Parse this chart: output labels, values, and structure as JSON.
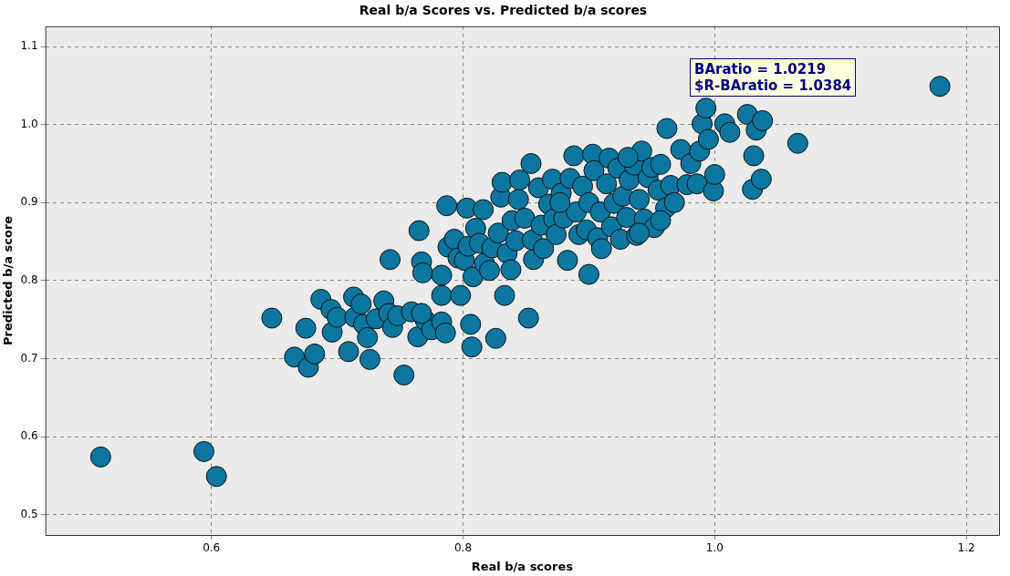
{
  "chart_data": {
    "type": "scatter",
    "title": "Real b/a Scores vs. Predicted b/a scores",
    "xlabel": "Real b/a scores",
    "ylabel": "Predicted b/a score",
    "annotations": [
      "BAratio = 1.0219",
      "$R-BAratio = 1.0384"
    ],
    "xlim": [
      0.468,
      1.226
    ],
    "ylim": [
      0.474,
      1.126
    ],
    "xticks": [
      0.6,
      0.8,
      {
        "value": 1,
        "label": "1.0"
      },
      1.2
    ],
    "yticks": [
      0.5,
      0.6,
      0.7,
      0.8,
      0.9,
      {
        "value": 1,
        "label": "1.0"
      },
      1.1
    ],
    "grid": true,
    "marker": "circle",
    "legend": false,
    "series": [
      {
        "color": "#0b77a0",
        "x": [
          0.512,
          0.594,
          0.604,
          0.648,
          0.666,
          0.677,
          0.682,
          0.675,
          0.687,
          0.695,
          0.696,
          0.7,
          0.709,
          0.713,
          0.714,
          0.719,
          0.721,
          0.724,
          0.726,
          0.731,
          0.737,
          0.741,
          0.742,
          0.744,
          0.748,
          0.753,
          0.759,
          0.765,
          0.767,
          0.768,
          0.764,
          0.77,
          0.775,
          0.783,
          0.786,
          0.767,
          0.783,
          0.783,
          0.787,
          0.788,
          0.793,
          0.796,
          0.798,
          0.801,
          0.803,
          0.804,
          0.806,
          0.807,
          0.808,
          0.81,
          0.813,
          0.816,
          0.817,
          0.821,
          0.823,
          0.826,
          0.828,
          0.83,
          0.831,
          0.833,
          0.835,
          0.838,
          0.839,
          0.842,
          0.844,
          0.845,
          0.849,
          0.852,
          0.854,
          0.855,
          0.856,
          0.86,
          0.862,
          0.864,
          0.868,
          0.871,
          0.872,
          0.874,
          0.878,
          0.88,
          0.883,
          0.885,
          0.888,
          0.89,
          0.892,
          0.895,
          0.898,
          0.9,
          0.903,
          0.904,
          0.907,
          0.909,
          0.91,
          0.914,
          0.916,
          0.918,
          0.92,
          0.923,
          0.925,
          0.927,
          0.93,
          0.932,
          0.936,
          0.938,
          0.94,
          0.942,
          0.944,
          0.947,
          0.95,
          0.952,
          0.955,
          0.957,
          0.962,
          0.961,
          0.965,
          0.968,
          0.973,
          0.978,
          0.981,
          0.986,
          0.988,
          0.99,
          0.993,
          0.995,
          0.999,
          1.0,
          1.008,
          1.012,
          1.026,
          1.033,
          1.031,
          1.03,
          1.037,
          1.038,
          1.066,
          1.179,
          0.9,
          0.94,
          0.957,
          0.877,
          0.931
        ],
        "values": [
          0.574,
          0.581,
          0.549,
          0.752,
          0.702,
          0.689,
          0.706,
          0.739,
          0.776,
          0.763,
          0.734,
          0.753,
          0.709,
          0.779,
          0.753,
          0.77,
          0.744,
          0.727,
          0.699,
          0.751,
          0.774,
          0.758,
          0.827,
          0.74,
          0.755,
          0.679,
          0.76,
          0.864,
          0.824,
          0.81,
          0.728,
          0.749,
          0.737,
          0.747,
          0.733,
          0.758,
          0.807,
          0.781,
          0.896,
          0.843,
          0.853,
          0.829,
          0.781,
          0.826,
          0.893,
          0.844,
          0.744,
          0.715,
          0.805,
          0.867,
          0.848,
          0.891,
          0.822,
          0.813,
          0.842,
          0.726,
          0.861,
          0.907,
          0.926,
          0.781,
          0.835,
          0.814,
          0.877,
          0.851,
          0.904,
          0.929,
          0.88,
          0.752,
          0.95,
          0.852,
          0.827,
          0.919,
          0.871,
          0.841,
          0.898,
          0.93,
          0.879,
          0.859,
          0.912,
          0.88,
          0.826,
          0.931,
          0.96,
          0.888,
          0.859,
          0.921,
          0.865,
          0.9,
          0.962,
          0.941,
          0.855,
          0.888,
          0.841,
          0.924,
          0.957,
          0.869,
          0.899,
          0.944,
          0.853,
          0.908,
          0.881,
          0.929,
          0.948,
          0.858,
          0.904,
          0.966,
          0.879,
          0.932,
          0.945,
          0.868,
          0.916,
          0.949,
          0.995,
          0.893,
          0.922,
          0.9,
          0.968,
          0.923,
          0.95,
          0.924,
          0.966,
          1.001,
          1.021,
          0.981,
          0.915,
          0.936,
          1.001,
          0.99,
          1.013,
          0.993,
          0.96,
          0.917,
          0.93,
          1.005,
          0.976,
          1.049,
          0.808,
          0.861,
          0.877,
          0.9,
          0.958
        ]
      }
    ]
  }
}
